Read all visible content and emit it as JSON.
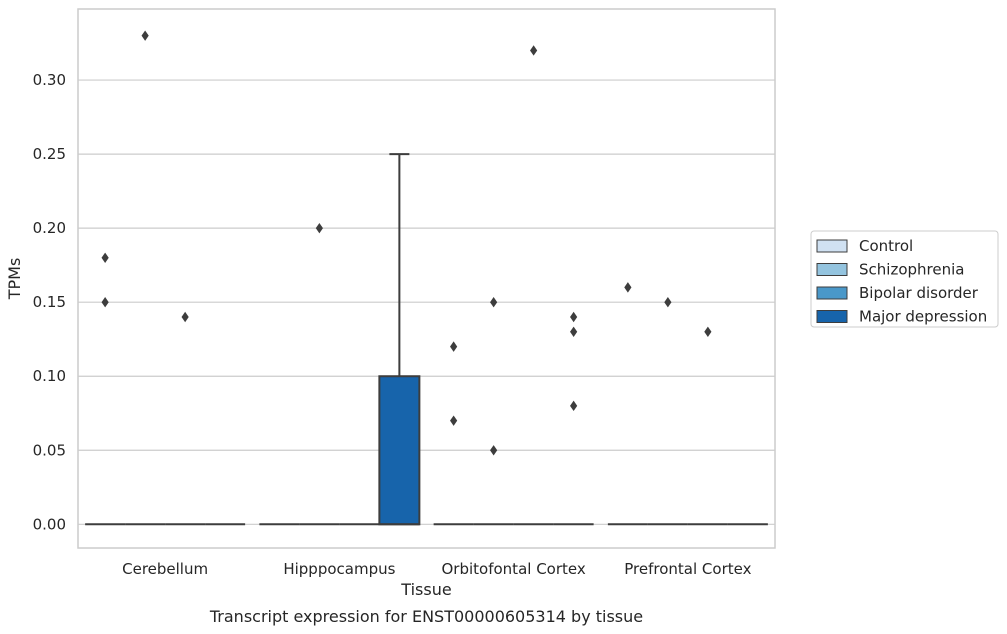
{
  "caption": "Transcript expression for ENST00000605314 by tissue",
  "chart_data": {
    "type": "box",
    "xlabel": "Tissue",
    "ylabel": "TPMs",
    "ylim": [
      -0.016,
      0.348
    ],
    "yticks": [
      "0.00",
      "0.05",
      "0.10",
      "0.15",
      "0.20",
      "0.25",
      "0.30"
    ],
    "ytick_values": [
      0,
      0.05,
      0.1,
      0.15,
      0.2,
      0.25,
      0.3
    ],
    "categories": [
      "Cerebellum",
      "Hipppocampus",
      "Orbitofontal Cortex",
      "Prefrontal Cortex"
    ],
    "grid": true,
    "legend_position": "right",
    "series": [
      {
        "name": "Control",
        "color": "#d0e1f2"
      },
      {
        "name": "Schizophrenia",
        "color": "#94c4df"
      },
      {
        "name": "Bipolar disorder",
        "color": "#4a98c9"
      },
      {
        "name": "Major depression",
        "color": "#1764ab"
      }
    ],
    "boxes": [
      {
        "category": "Cerebellum",
        "series": "Control",
        "q1": 0,
        "median": 0,
        "q3": 0,
        "whisker_low": 0,
        "whisker_high": 0,
        "outliers": [
          0.15,
          0.18
        ]
      },
      {
        "category": "Cerebellum",
        "series": "Schizophrenia",
        "q1": 0,
        "median": 0,
        "q3": 0,
        "whisker_low": 0,
        "whisker_high": 0,
        "outliers": [
          0.33
        ]
      },
      {
        "category": "Cerebellum",
        "series": "Bipolar disorder",
        "q1": 0,
        "median": 0,
        "q3": 0,
        "whisker_low": 0,
        "whisker_high": 0,
        "outliers": [
          0.14
        ]
      },
      {
        "category": "Cerebellum",
        "series": "Major depression",
        "q1": 0,
        "median": 0,
        "q3": 0,
        "whisker_low": 0,
        "whisker_high": 0,
        "outliers": []
      },
      {
        "category": "Hipppocampus",
        "series": "Control",
        "q1": 0,
        "median": 0,
        "q3": 0,
        "whisker_low": 0,
        "whisker_high": 0,
        "outliers": []
      },
      {
        "category": "Hipppocampus",
        "series": "Schizophrenia",
        "q1": 0,
        "median": 0,
        "q3": 0,
        "whisker_low": 0,
        "whisker_high": 0,
        "outliers": [
          0.2
        ]
      },
      {
        "category": "Hipppocampus",
        "series": "Bipolar disorder",
        "q1": 0,
        "median": 0,
        "q3": 0,
        "whisker_low": 0,
        "whisker_high": 0,
        "outliers": []
      },
      {
        "category": "Hipppocampus",
        "series": "Major depression",
        "q1": 0,
        "median": 0,
        "q3": 0.1,
        "whisker_low": 0,
        "whisker_high": 0.25,
        "outliers": []
      },
      {
        "category": "Orbitofontal Cortex",
        "series": "Control",
        "q1": 0,
        "median": 0,
        "q3": 0,
        "whisker_low": 0,
        "whisker_high": 0,
        "outliers": [
          0.12,
          0.07
        ]
      },
      {
        "category": "Orbitofontal Cortex",
        "series": "Schizophrenia",
        "q1": 0,
        "median": 0,
        "q3": 0,
        "whisker_low": 0,
        "whisker_high": 0,
        "outliers": [
          0.15,
          0.05
        ]
      },
      {
        "category": "Orbitofontal Cortex",
        "series": "Bipolar disorder",
        "q1": 0,
        "median": 0,
        "q3": 0,
        "whisker_low": 0,
        "whisker_high": 0,
        "outliers": [
          0.32
        ]
      },
      {
        "category": "Orbitofontal Cortex",
        "series": "Major depression",
        "q1": 0,
        "median": 0,
        "q3": 0,
        "whisker_low": 0,
        "whisker_high": 0,
        "outliers": [
          0.14,
          0.13,
          0.08
        ]
      },
      {
        "category": "Prefrontal Cortex",
        "series": "Control",
        "q1": 0,
        "median": 0,
        "q3": 0,
        "whisker_low": 0,
        "whisker_high": 0,
        "outliers": [
          0.16
        ]
      },
      {
        "category": "Prefrontal Cortex",
        "series": "Schizophrenia",
        "q1": 0,
        "median": 0,
        "q3": 0,
        "whisker_low": 0,
        "whisker_high": 0,
        "outliers": [
          0.15
        ]
      },
      {
        "category": "Prefrontal Cortex",
        "series": "Bipolar disorder",
        "q1": 0,
        "median": 0,
        "q3": 0,
        "whisker_low": 0,
        "whisker_high": 0,
        "outliers": [
          0.13
        ]
      },
      {
        "category": "Prefrontal Cortex",
        "series": "Major depression",
        "q1": 0,
        "median": 0,
        "q3": 0,
        "whisker_low": 0,
        "whisker_high": 0,
        "outliers": []
      }
    ]
  }
}
